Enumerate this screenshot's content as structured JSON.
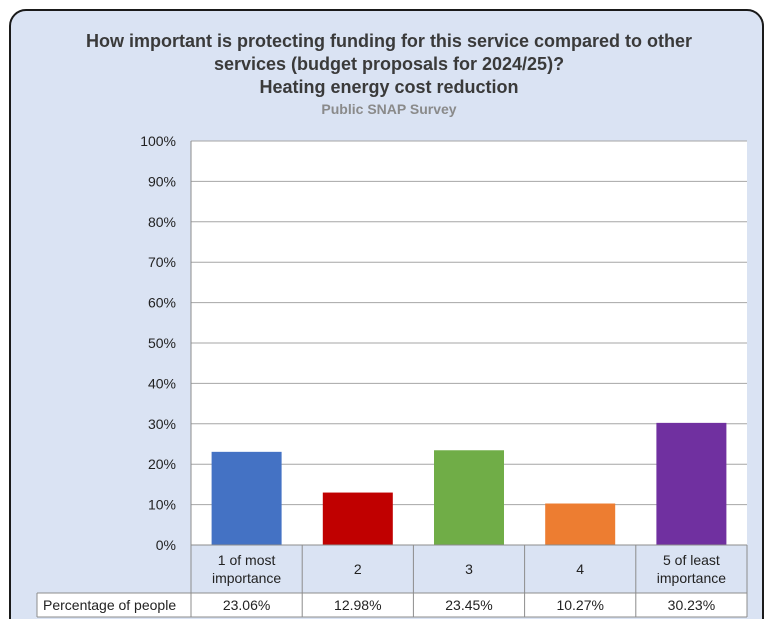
{
  "chart_data": {
    "type": "bar",
    "title_lines": [
      "How important is protecting funding for this service compared to other",
      "services (budget proposals for 2024/25)?",
      "Heating energy cost reduction"
    ],
    "subtitle": "Public SNAP Survey",
    "categories": [
      [
        "1 of most",
        "importance"
      ],
      [
        "2"
      ],
      [
        "3"
      ],
      [
        "4"
      ],
      [
        "5 of least",
        "importance"
      ]
    ],
    "series": [
      {
        "name": "Percentage of people",
        "values": [
          23.06,
          12.98,
          23.45,
          10.27,
          30.23
        ],
        "labels": [
          "23.06%",
          "12.98%",
          "23.45%",
          "10.27%",
          "30.23%"
        ]
      }
    ],
    "colors": [
      "#4472c4",
      "#c00000",
      "#70ad47",
      "#ed7d31",
      "#7030a0"
    ],
    "ylim": [
      0,
      100
    ],
    "yticks": [
      0,
      10,
      20,
      30,
      40,
      50,
      60,
      70,
      80,
      90,
      100
    ],
    "ytick_labels": [
      "0%",
      "10%",
      "20%",
      "30%",
      "40%",
      "50%",
      "60%",
      "70%",
      "80%",
      "90%",
      "100%"
    ],
    "grid": true,
    "legend": "data-table",
    "background_color": "#dae3f3",
    "plot_background_color": "#ffffff",
    "border_color": "#1a1a1a"
  }
}
